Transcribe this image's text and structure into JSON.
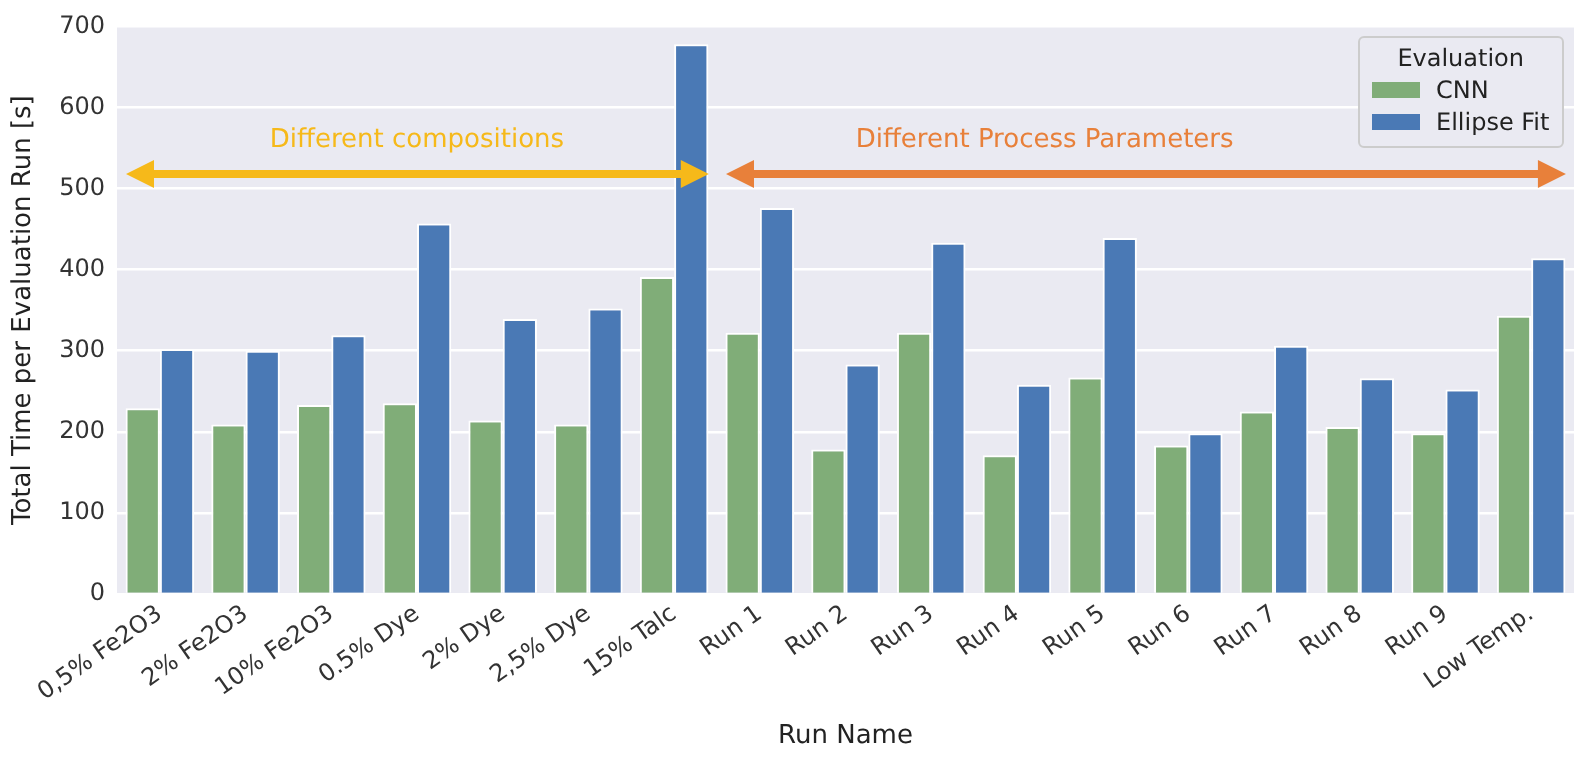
{
  "chart_data": {
    "type": "bar",
    "xlabel": "Run Name",
    "ylabel": "Total Time per Evaluation Run [s]",
    "legend_title": "Evaluation",
    "categories": [
      "0,5% Fe2O3",
      "2% Fe2O3",
      "10% Fe2O3",
      "0.5% Dye",
      "2% Dye",
      "2,5% Dye",
      "15% Talc",
      "Run 1",
      "Run 2",
      "Run 3",
      "Run 4",
      "Run 5",
      "Run 6",
      "Run 7",
      "Run 8",
      "Run 9",
      "Low Temp."
    ],
    "series": [
      {
        "name": "CNN",
        "color": "#80ad78",
        "values": [
          229,
          209,
          233,
          235,
          214,
          209,
          391,
          322,
          178,
          322,
          171,
          267,
          183,
          225,
          206,
          198,
          343
        ]
      },
      {
        "name": "Ellipse Fit",
        "color": "#4a79b5",
        "values": [
          302,
          300,
          319,
          457,
          339,
          352,
          678,
          476,
          283,
          433,
          258,
          439,
          198,
          306,
          266,
          252,
          414
        ]
      }
    ],
    "ylim": [
      0,
      700
    ],
    "yticks": [
      0,
      100,
      200,
      300,
      400,
      500,
      600,
      700
    ],
    "grid": "y",
    "legend": "top right",
    "annotations": [
      "Different compositions",
      "Different Process Parameters"
    ]
  }
}
